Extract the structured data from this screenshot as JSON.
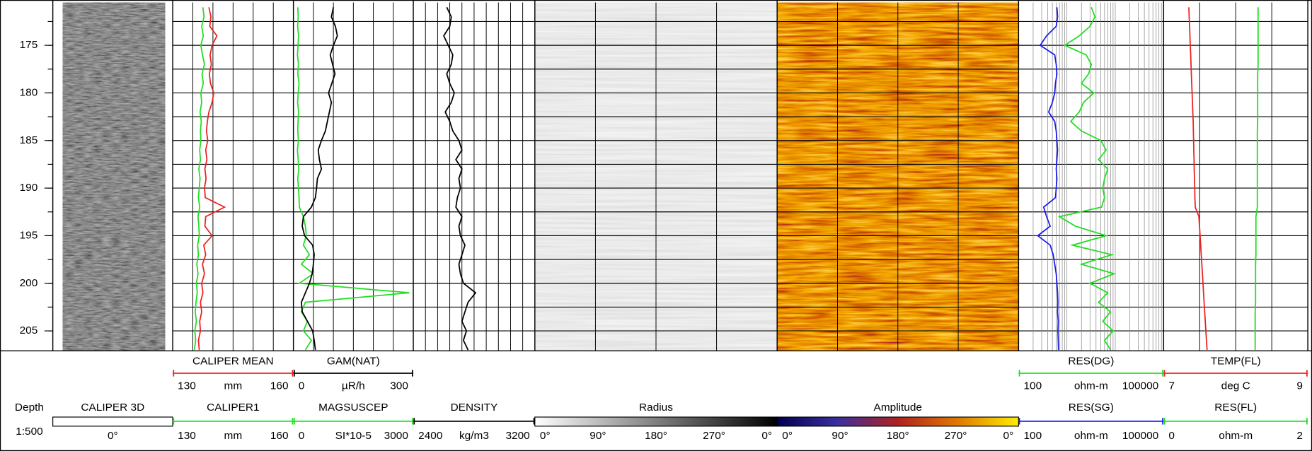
{
  "chart_data": {
    "type": "well-log",
    "depth_label": "Depth",
    "scale_label": "1:500",
    "ylim": [
      170.5,
      207.1
    ],
    "yticks": [
      175,
      180,
      185,
      190,
      195,
      200,
      205
    ],
    "ygrid": [
      172.5,
      175,
      177.5,
      180,
      182.5,
      185,
      187.5,
      190,
      192.5,
      195,
      197.5,
      200,
      202.5,
      205
    ],
    "depth": [
      171,
      172,
      173,
      174,
      175,
      176,
      177,
      178,
      179,
      180,
      181,
      182,
      183,
      184,
      185,
      186,
      187,
      188,
      189,
      190,
      191,
      192,
      193,
      194,
      195,
      196,
      197,
      198,
      199,
      200,
      201,
      202,
      203,
      204,
      205,
      206,
      207
    ],
    "tracks": [
      {
        "name": "CALIPER 3D",
        "image": "caliper3d",
        "scale_labels": [
          "0°"
        ],
        "colormap": [
          "#ffffff"
        ]
      },
      {
        "xgrid": [
          135,
          140,
          145,
          150,
          155
        ],
        "curves": [
          {
            "name": "CALIPER1",
            "unit": "mm",
            "xlim": [
              130,
              160
            ],
            "color": "#22dd22",
            "values": [
              137.5,
              137.8,
              137.2,
              137.6,
              137.0,
              137.4,
              137.9,
              137.3,
              137.6,
              137.0,
              137.2,
              136.8,
              137.1,
              136.9,
              137.0,
              136.7,
              136.9,
              136.5,
              136.8,
              136.6,
              136.4,
              136.7,
              136.3,
              136.5,
              136.6,
              136.2,
              136.4,
              136.0,
              136.3,
              135.9,
              136.1,
              135.8,
              135.6,
              135.9,
              135.5,
              135.7,
              135.4
            ]
          },
          {
            "name": "CALIPER MEAN",
            "unit": "mm",
            "xlim": [
              130,
              160
            ],
            "color": "#ee2222",
            "values": [
              139.0,
              139.5,
              139.2,
              141.0,
              139.8,
              139.3,
              139.6,
              139.1,
              139.4,
              140.2,
              139.8,
              139.0,
              138.6,
              138.4,
              138.7,
              138.2,
              138.5,
              138.0,
              138.3,
              137.9,
              138.1,
              142.9,
              138.2,
              138.0,
              139.8,
              137.7,
              138.2,
              137.4,
              137.9,
              137.2,
              137.5,
              136.9,
              137.2,
              136.7,
              136.9,
              136.4,
              136.6
            ]
          }
        ]
      },
      {
        "xgrid": [
          500,
          1000,
          1500,
          2000,
          2500
        ],
        "curves": [
          {
            "name": "MAGSUSCEP",
            "unit": "SI*10-5",
            "xlim": [
              0,
              3000
            ],
            "color": "#22dd22",
            "values": [
              110,
              120,
              105,
              130,
              115,
              100,
              125,
              110,
              140,
              120,
              105,
              130,
              115,
              110,
              125,
              100,
              120,
              135,
              110,
              125,
              140,
              150,
              250,
              300,
              320,
              250,
              400,
              200,
              500,
              150,
              2900,
              300,
              200,
              350,
              250,
              450,
              300
            ]
          },
          {
            "name": "GAM(NAT)",
            "unit": "µR/h",
            "xlim": [
              0,
              300
            ],
            "color": "#000000",
            "values": [
              100,
              95,
              105,
              110,
              100,
              92,
              98,
              104,
              96,
              88,
              95,
              90,
              85,
              80,
              70,
              62,
              65,
              70,
              60,
              58,
              55,
              45,
              25,
              22,
              28,
              48,
              52,
              50,
              47,
              40,
              30,
              20,
              22,
              35,
              48,
              52,
              55
            ]
          }
        ]
      },
      {
        "xgrid": [
          2480,
          2560,
          2640,
          2720,
          2800,
          2880,
          2960,
          3040,
          3120
        ],
        "curves": [
          {
            "name": "DENSITY",
            "unit": "kg/m3",
            "xlim": [
              2400,
              3200
            ],
            "color": "#000000",
            "values": [
              2620,
              2650,
              2640,
              2600,
              2630,
              2660,
              2650,
              2620,
              2640,
              2670,
              2650,
              2610,
              2640,
              2660,
              2700,
              2720,
              2680,
              2720,
              2700,
              2710,
              2690,
              2680,
              2720,
              2700,
              2710,
              2740,
              2720,
              2700,
              2710,
              2730,
              2810,
              2760,
              2740,
              2720,
              2750,
              2730,
              2760
            ]
          }
        ]
      },
      {
        "name": "Radius",
        "image": "radius",
        "xlim": [
          0,
          360
        ],
        "xgrid": [
          90,
          180,
          270
        ],
        "scale_labels": [
          "0°",
          "90°",
          "180°",
          "270°",
          "0°"
        ],
        "colormap": [
          "#ffffff",
          "#000000"
        ]
      },
      {
        "name": "Amplitude",
        "image": "amplitude",
        "xlim": [
          0,
          360
        ],
        "xgrid": [
          90,
          180,
          270
        ],
        "scale_labels": [
          "0°",
          "90°",
          "180°",
          "270°",
          "0°"
        ],
        "colormap": [
          "#000050",
          "#3a2fa0",
          "#b02020",
          "#e07a00",
          "#ffee00"
        ]
      },
      {
        "xgrid": [
          200,
          300,
          400,
          500,
          600,
          700,
          800,
          900,
          1000,
          2000,
          3000,
          4000,
          5000,
          6000,
          7000,
          8000,
          9000,
          10000,
          20000,
          30000,
          40000,
          50000,
          60000,
          70000,
          80000,
          90000
        ],
        "curves": [
          {
            "name": "RES(SG)",
            "unit": "ohm-m",
            "xlim": [
              100,
              100000
            ],
            "log": true,
            "color": "#1a1aee",
            "values": [
              620,
              640,
              600,
              380,
              280,
              560,
              600,
              620,
              580,
              560,
              500,
              420,
              560,
              600,
              620,
              640,
              620,
              600,
              620,
              600,
              580,
              330,
              380,
              450,
              250,
              450,
              520,
              560,
              600,
              620,
              640,
              650,
              640,
              660,
              650,
              660,
              670
            ]
          },
          {
            "name": "RES(DG)",
            "unit": "ohm-m",
            "xlim": [
              100,
              100000
            ],
            "log": true,
            "color": "#22dd22",
            "values": [
              3200,
              3800,
              3000,
              1800,
              900,
              2500,
              3200,
              2800,
              2000,
              3600,
              2200,
              1800,
              1200,
              2000,
              5000,
              6500,
              4500,
              7000,
              6000,
              5500,
              6000,
              5200,
              700,
              1500,
              6500,
              1300,
              8500,
              2000,
              9500,
              3000,
              7000,
              4500,
              8000,
              5500,
              9000,
              6000,
              8000
            ]
          }
        ]
      },
      {
        "xgrid": [
          0.5,
          1,
          1.5
        ],
        "curves": [
          {
            "name": "RES(FL)",
            "unit": "ohm-m",
            "xlim": [
              0,
              2
            ],
            "color": "#22dd22",
            "values": [
              1.31,
              1.31,
              1.31,
              1.31,
              1.31,
              1.31,
              1.31,
              1.305,
              1.305,
              1.305,
              1.305,
              1.305,
              1.305,
              1.3,
              1.3,
              1.3,
              1.3,
              1.3,
              1.3,
              1.3,
              1.3,
              1.3,
              1.28,
              1.28,
              1.28,
              1.28,
              1.28,
              1.275,
              1.275,
              1.275,
              1.275,
              1.275,
              1.27,
              1.27,
              1.27,
              1.27,
              1.27
            ]
          },
          {
            "name": "TEMP(FL)",
            "unit": "deg C",
            "xlim": [
              7,
              9
            ],
            "color": "#ee2222",
            "values": [
              7.35,
              7.355,
              7.36,
              7.365,
              7.37,
              7.375,
              7.38,
              7.385,
              7.39,
              7.395,
              7.4,
              7.405,
              7.41,
              7.413,
              7.416,
              7.419,
              7.422,
              7.425,
              7.428,
              7.431,
              7.434,
              7.44,
              7.49,
              7.498,
              7.506,
              7.514,
              7.522,
              7.53,
              7.538,
              7.546,
              7.554,
              7.562,
              7.57,
              7.578,
              7.586,
              7.594,
              7.602
            ]
          }
        ]
      }
    ]
  }
}
